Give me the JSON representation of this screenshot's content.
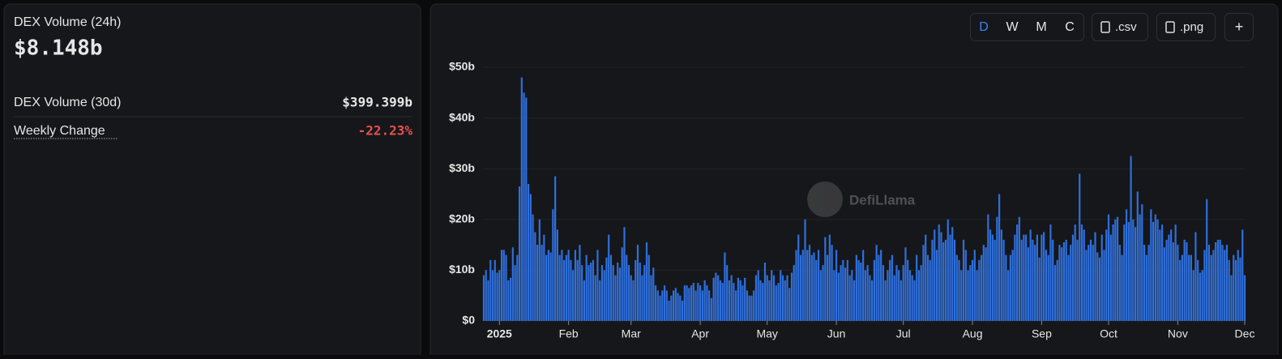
{
  "summary": {
    "title": "DEX Volume (24h)",
    "value": "$8.148b",
    "rows": [
      {
        "label": "DEX Volume (30d)",
        "value": "$399.399b"
      },
      {
        "label": "Weekly Change",
        "value": "-22.23%"
      }
    ]
  },
  "controls": {
    "intervals": [
      "D",
      "W",
      "M",
      "C"
    ],
    "downloads": [
      ".csv",
      ".png"
    ],
    "add": "+"
  },
  "watermark": "DefiLlama",
  "chart_data": {
    "type": "bar",
    "color": "#2f6fdb",
    "grid": true,
    "ylim": [
      0,
      50
    ],
    "yticks": [
      {
        "value": 0,
        "label": "$0"
      },
      {
        "value": 10,
        "label": "$10b"
      },
      {
        "value": 20,
        "label": "$20b"
      },
      {
        "value": 30,
        "label": "$30b"
      },
      {
        "value": 40,
        "label": "$40b"
      },
      {
        "value": 50,
        "label": "$50b"
      }
    ],
    "categories": [
      null,
      null,
      null,
      null,
      null,
      null,
      null,
      "2025",
      null,
      null,
      null,
      null,
      null,
      null,
      null,
      null,
      null,
      null,
      null,
      null,
      null,
      null,
      null,
      null,
      null,
      null,
      null,
      null,
      null,
      null,
      null,
      null,
      null,
      null,
      null,
      null,
      null,
      null,
      "Feb",
      null,
      null,
      null,
      null,
      null,
      null,
      null,
      null,
      null,
      null,
      null,
      null,
      null,
      null,
      null,
      null,
      null,
      null,
      null,
      null,
      null,
      null,
      null,
      null,
      null,
      null,
      null,
      "Mar",
      null,
      null,
      null,
      null,
      null,
      null,
      null,
      null,
      null,
      null,
      null,
      null,
      null,
      null,
      null,
      null,
      null,
      null,
      null,
      null,
      null,
      null,
      null,
      null,
      null,
      null,
      null,
      null,
      null,
      null,
      "Apr",
      null,
      null,
      null,
      null,
      null,
      null,
      null,
      null,
      null,
      null,
      null,
      null,
      null,
      null,
      null,
      null,
      null,
      null,
      null,
      null,
      null,
      null,
      null,
      null,
      null,
      null,
      null,
      null,
      null,
      "May",
      null,
      null,
      null,
      null,
      null,
      null,
      null,
      null,
      null,
      null,
      null,
      null,
      null,
      null,
      null,
      null,
      null,
      null,
      null,
      null,
      null,
      null,
      null,
      null,
      null,
      null,
      null,
      null,
      null,
      null,
      "Jun",
      null,
      null,
      null,
      null,
      null,
      null,
      null,
      null,
      null,
      null,
      null,
      null,
      null,
      null,
      null,
      null,
      null,
      null,
      null,
      null,
      null,
      null,
      null,
      null,
      null,
      null,
      null,
      null,
      null,
      "Jul",
      null,
      null,
      null,
      null,
      null,
      null,
      null,
      null,
      null,
      null,
      null,
      null,
      null,
      null,
      null,
      null,
      null,
      null,
      null,
      null,
      null,
      null,
      null,
      null,
      null,
      null,
      null,
      null,
      null,
      null,
      "Aug",
      null,
      null,
      null,
      null,
      null,
      null,
      null,
      null,
      null,
      null,
      null,
      null,
      null,
      null,
      null,
      null,
      null,
      null,
      null,
      null,
      null,
      null,
      null,
      null,
      null,
      null,
      null,
      null,
      null,
      null,
      "Sep",
      null,
      null,
      null,
      null,
      null,
      null,
      null,
      null,
      null,
      null,
      null,
      null,
      null,
      null,
      null,
      null,
      null,
      null,
      null,
      null,
      null,
      null,
      null,
      null,
      null,
      null,
      null,
      null,
      null,
      "Oct",
      null,
      null,
      null,
      null,
      null,
      null,
      null,
      null,
      null,
      null,
      null,
      null,
      null,
      null,
      null,
      null,
      null,
      null,
      null,
      null,
      null,
      null,
      null,
      null,
      null,
      null,
      null,
      null,
      null,
      null,
      "Nov",
      null,
      null,
      null,
      null,
      null,
      null,
      null,
      null,
      null,
      null,
      null,
      null,
      null,
      null,
      null,
      null,
      null,
      null,
      null,
      null,
      null,
      null,
      null,
      null,
      null,
      null,
      null,
      null,
      null,
      "Dec"
    ],
    "values": [
      9,
      10,
      8,
      12,
      10,
      12,
      9.5,
      10,
      14,
      14,
      13,
      8,
      8.5,
      14.5,
      11,
      13,
      26.5,
      48,
      45,
      44,
      27,
      25,
      21,
      17.5,
      15,
      20,
      15,
      17,
      13,
      14,
      13.5,
      22,
      28.5,
      18,
      13,
      14,
      12,
      13,
      14,
      12,
      10,
      14,
      12,
      15,
      11,
      8,
      13,
      11,
      11.5,
      12,
      9,
      14,
      8,
      11,
      10,
      12.5,
      17,
      13,
      11,
      9,
      11.5,
      10.5,
      14.5,
      18.5,
      13,
      11,
      9,
      8,
      12,
      15,
      11.5,
      9,
      11,
      15.5,
      13,
      9,
      10.5,
      7,
      6,
      5,
      6,
      7,
      6,
      4,
      5,
      6,
      6.5,
      5.5,
      5,
      4,
      7,
      7,
      6.5,
      7,
      7.5,
      6,
      7.5,
      7,
      6,
      8,
      7,
      6,
      4.5,
      8.5,
      9.5,
      9,
      8,
      7.5,
      13.5,
      11,
      8,
      9,
      7.5,
      6,
      8.5,
      8,
      7,
      8.5,
      6,
      5,
      5,
      6,
      9,
      10,
      8,
      7.5,
      11.5,
      9,
      8,
      10,
      9,
      7,
      7.5,
      10,
      9,
      8,
      9,
      6.5,
      9.5,
      11,
      14,
      17,
      13,
      14,
      20,
      14,
      15,
      13,
      13.5,
      12,
      14,
      10,
      11,
      16.5,
      13,
      17,
      15,
      10,
      14,
      9.5,
      11,
      12,
      10.5,
      12,
      9,
      10,
      8,
      13,
      12,
      11.5,
      14,
      10,
      11,
      9,
      8,
      12,
      15,
      13,
      14,
      11,
      8,
      10,
      12,
      13,
      9,
      11,
      10,
      8,
      11,
      14.5,
      12,
      10,
      9,
      8,
      13,
      10,
      11,
      15,
      17,
      13,
      12,
      16,
      18,
      14,
      19,
      17.5,
      15.5,
      16,
      20,
      17,
      18.5,
      16,
      13,
      12,
      10,
      16,
      14,
      10,
      11,
      12,
      14,
      10,
      12,
      13,
      15,
      14.5,
      21,
      18,
      17,
      16,
      20.5,
      25,
      18,
      16,
      13,
      10,
      13,
      14,
      17,
      19,
      20.5,
      16,
      17,
      17,
      14.5,
      18,
      16,
      15,
      17,
      12.5,
      17,
      17.5,
      14,
      13,
      19,
      16,
      11,
      12,
      15,
      14.5,
      15.5,
      16,
      13,
      15,
      17,
      19,
      16,
      29,
      19,
      18,
      14,
      15,
      16,
      15,
      17.5,
      13.5,
      12.5,
      17,
      14,
      18,
      21,
      17,
      19,
      20,
      20.5,
      15,
      13,
      19,
      22,
      19.5,
      32.5,
      20,
      18.5,
      25.5,
      21,
      23,
      15,
      13,
      15,
      22,
      19.5,
      21,
      20,
      18,
      19,
      14.5,
      16,
      17,
      18,
      15.5,
      19,
      15,
      12,
      13,
      16,
      15.5,
      13,
      13,
      10,
      17.5,
      12,
      9.5,
      10,
      14,
      24,
      15,
      13,
      14,
      15.5,
      16,
      16,
      15,
      14,
      15,
      12,
      9,
      13,
      12,
      14,
      12.5,
      18,
      9
    ]
  }
}
